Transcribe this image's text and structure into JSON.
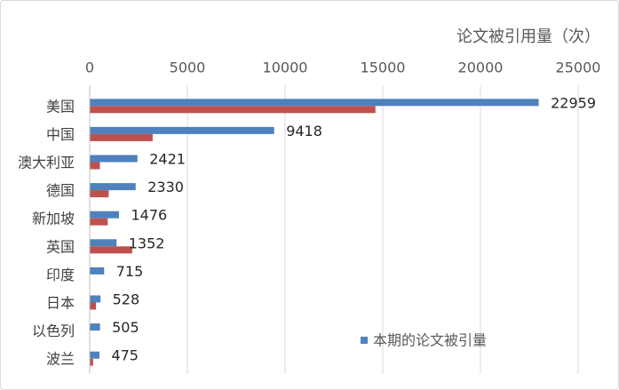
{
  "chart_data": {
    "type": "bar",
    "orientation": "horizontal",
    "categories": [
      "美国",
      "中国",
      "澳大利亚",
      "德国",
      "新加坡",
      "英国",
      "印度",
      "日本",
      "以色列",
      "波兰"
    ],
    "series": [
      {
        "name": "本期的论文被引量",
        "values": [
          22959,
          9418,
          2421,
          2330,
          1476,
          1352,
          715,
          528,
          505,
          475
        ],
        "color": "#4F81BD",
        "data_labels": true
      },
      {
        "values": [
          14600,
          3200,
          500,
          950,
          900,
          2150,
          0,
          300,
          0,
          150
        ],
        "color": "#C0504D",
        "data_labels": false
      }
    ],
    "xlabel": "论文被引用量（次）",
    "xticks": [
      0,
      5000,
      10000,
      15000,
      20000,
      25000
    ],
    "xlim": [
      0,
      25000
    ],
    "x_axis_position": "top",
    "grid": true,
    "legend": "bottom-right"
  }
}
